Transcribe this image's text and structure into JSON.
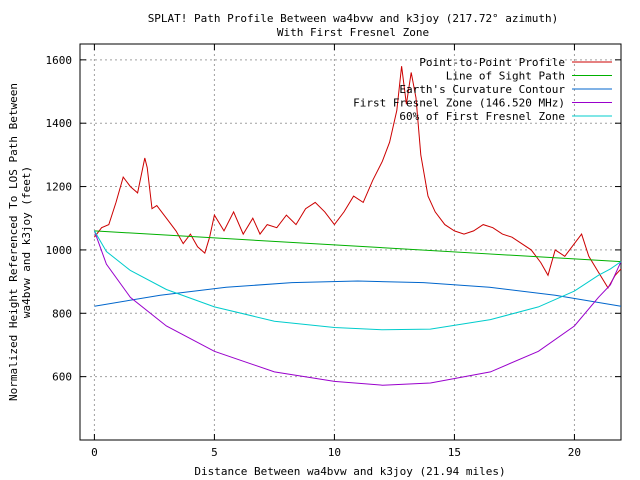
{
  "chart_data": {
    "type": "line",
    "title": "SPLAT! Path Profile Between wa4bvw and k3joy (217.72° azimuth)",
    "subtitle": "With First Fresnel Zone",
    "xlabel": "Distance Between wa4bvw and k3joy (21.94 miles)",
    "ylabel": "Normalized Height Referenced To LOS Path Between wa4bvw and k3joy (feet)",
    "xlim": [
      -0.6,
      21.94
    ],
    "ylim": [
      400,
      1650
    ],
    "x_ticks": [
      0,
      5,
      10,
      15,
      20
    ],
    "y_ticks": [
      600,
      800,
      1000,
      1200,
      1400,
      1600
    ],
    "grid": true,
    "legend_position": "top-right",
    "series": [
      {
        "name": "Point-to-Point Profile",
        "color": "#cc0000",
        "x": [
          0,
          0.3,
          0.6,
          0.9,
          1.2,
          1.5,
          1.8,
          2.1,
          2.2,
          2.4,
          2.6,
          3.0,
          3.4,
          3.7,
          4.0,
          4.3,
          4.6,
          4.8,
          5.0,
          5.4,
          5.8,
          6.2,
          6.6,
          6.9,
          7.2,
          7.6,
          8.0,
          8.4,
          8.8,
          9.2,
          9.6,
          10.0,
          10.4,
          10.8,
          11.2,
          11.6,
          12.0,
          12.3,
          12.6,
          12.8,
          13.0,
          13.2,
          13.4,
          13.6,
          13.9,
          14.2,
          14.6,
          15.0,
          15.4,
          15.8,
          16.2,
          16.6,
          17.0,
          17.4,
          17.8,
          18.2,
          18.6,
          18.9,
          19.2,
          19.6,
          20.0,
          20.3,
          20.6,
          21.0,
          21.4,
          21.7,
          21.94
        ],
        "y": [
          1040,
          1070,
          1080,
          1150,
          1230,
          1200,
          1180,
          1290,
          1260,
          1130,
          1140,
          1100,
          1060,
          1020,
          1050,
          1010,
          990,
          1040,
          1110,
          1060,
          1120,
          1050,
          1100,
          1050,
          1080,
          1070,
          1110,
          1080,
          1130,
          1150,
          1120,
          1080,
          1120,
          1170,
          1150,
          1220,
          1280,
          1340,
          1440,
          1580,
          1460,
          1560,
          1480,
          1300,
          1170,
          1120,
          1080,
          1060,
          1050,
          1060,
          1080,
          1070,
          1050,
          1040,
          1020,
          1000,
          960,
          920,
          1000,
          980,
          1020,
          1050,
          980,
          930,
          880,
          920,
          940
        ]
      },
      {
        "name": "Line of Sight Path",
        "color": "#00b000",
        "x": [
          0,
          21.94
        ],
        "y": [
          1060,
          963
        ]
      },
      {
        "name": "Earth's Curvature Contour",
        "color": "#0066cc",
        "x": [
          0,
          2.74,
          5.49,
          8.23,
          10.97,
          13.71,
          16.46,
          19.2,
          21.94
        ],
        "y": [
          822,
          857,
          882,
          897,
          902,
          897,
          882,
          857,
          822
        ]
      },
      {
        "name": "First Fresnel Zone (146.520 MHz)",
        "color": "#9900cc",
        "x": [
          0,
          0.5,
          1.5,
          3.0,
          5.0,
          7.5,
          10.0,
          12.0,
          14.0,
          16.5,
          18.5,
          20.0,
          21.0,
          21.5,
          21.94
        ],
        "y": [
          1060,
          955,
          850,
          760,
          680,
          615,
          585,
          573,
          580,
          615,
          680,
          760,
          850,
          890,
          963
        ]
      },
      {
        "name": "60% of First Fresnel Zone",
        "color": "#00cccc",
        "x": [
          0,
          0.5,
          1.5,
          3.0,
          5.0,
          7.5,
          10.0,
          12.0,
          14.0,
          16.5,
          18.5,
          20.0,
          21.0,
          21.5,
          21.94
        ],
        "y": [
          1060,
          995,
          935,
          875,
          820,
          775,
          755,
          748,
          750,
          780,
          820,
          870,
          920,
          940,
          963
        ]
      }
    ]
  }
}
